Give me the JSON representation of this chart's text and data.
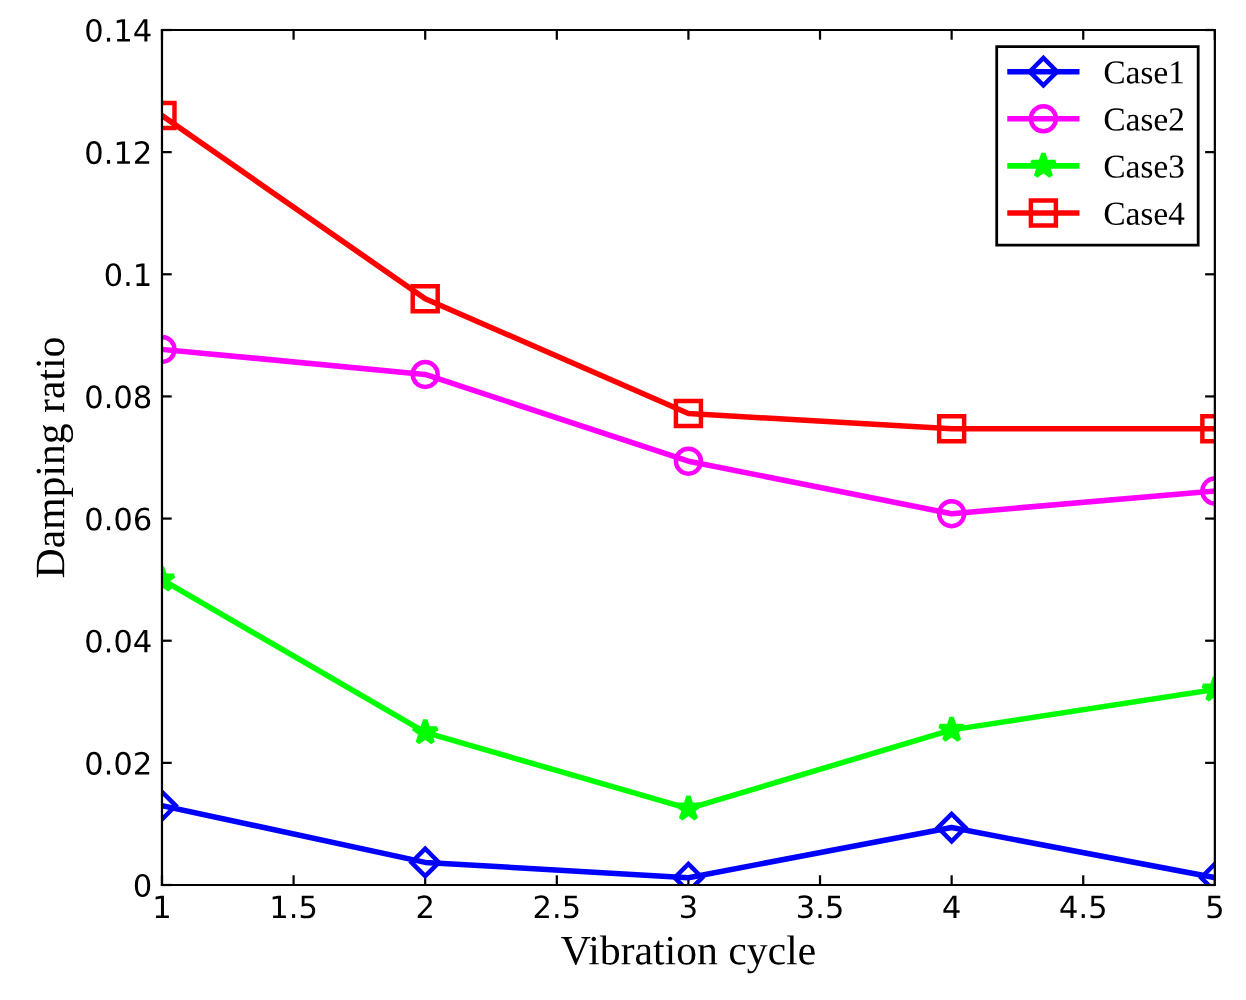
{
  "chart_data": {
    "type": "line",
    "xlabel": "Vibration cycle",
    "ylabel": "Damping ratio",
    "x": [
      1,
      2,
      3,
      4,
      5
    ],
    "series": [
      {
        "name": "Case1",
        "color": "#0000ff",
        "marker": "diamond",
        "values": [
          0.013,
          0.0037,
          0.0012,
          0.0094,
          0.0012
        ]
      },
      {
        "name": "Case2",
        "color": "#ff00ff",
        "marker": "circle",
        "values": [
          0.0877,
          0.0836,
          0.0694,
          0.0608,
          0.0645
        ]
      },
      {
        "name": "Case3",
        "color": "#00ff00",
        "marker": "star",
        "values": [
          0.05,
          0.025,
          0.0125,
          0.0254,
          0.032
        ]
      },
      {
        "name": "Case4",
        "color": "#ff0000",
        "marker": "square",
        "values": [
          0.126,
          0.096,
          0.0772,
          0.0747,
          0.0747
        ]
      }
    ],
    "xlim": [
      1,
      5
    ],
    "xticks": [
      1,
      1.5,
      2,
      2.5,
      3,
      3.5,
      4,
      4.5,
      5
    ],
    "ylim": [
      0,
      0.14
    ],
    "yticks": [
      0,
      0.02,
      0.04,
      0.06,
      0.08,
      {
        "value": 0.1,
        "label": "0.1"
      },
      0.12,
      0.14
    ],
    "grid": false,
    "legend": "top right",
    "line_style": "solid"
  }
}
